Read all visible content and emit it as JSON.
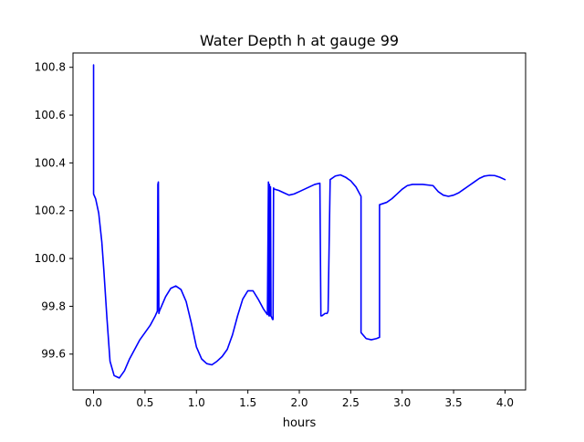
{
  "chart_data": {
    "type": "line",
    "title": "Water Depth h at gauge 99",
    "xlabel": "hours",
    "ylabel": "",
    "xlim": [
      -0.2,
      4.2
    ],
    "ylim": [
      99.45,
      100.86
    ],
    "xticks": [
      0.0,
      0.5,
      1.0,
      1.5,
      2.0,
      2.5,
      3.0,
      3.5,
      4.0
    ],
    "xtick_labels": [
      "0.0",
      "0.5",
      "1.0",
      "1.5",
      "2.0",
      "2.5",
      "3.0",
      "3.5",
      "4.0"
    ],
    "yticks": [
      99.6,
      99.8,
      100.0,
      100.2,
      100.4,
      100.6,
      100.8
    ],
    "ytick_labels": [
      "99.6",
      "99.8",
      "100.0",
      "100.2",
      "100.4",
      "100.6",
      "100.8"
    ],
    "grid": false,
    "legend": "none",
    "series": [
      {
        "color": "#0000ff",
        "x": [
          0.0,
          0.0,
          0.02,
          0.05,
          0.08,
          0.1,
          0.13,
          0.16,
          0.2,
          0.25,
          0.3,
          0.35,
          0.4,
          0.45,
          0.5,
          0.55,
          0.6,
          0.62,
          0.625,
          0.63,
          0.635,
          0.64,
          0.65,
          0.7,
          0.75,
          0.8,
          0.85,
          0.9,
          0.95,
          1.0,
          1.05,
          1.1,
          1.15,
          1.2,
          1.25,
          1.3,
          1.35,
          1.4,
          1.45,
          1.5,
          1.55,
          1.6,
          1.65,
          1.69,
          1.7,
          1.705,
          1.71,
          1.715,
          1.72,
          1.725,
          1.73,
          1.735,
          1.74,
          1.745,
          1.75,
          1.755,
          1.76,
          1.8,
          1.85,
          1.9,
          1.95,
          2.0,
          2.05,
          2.1,
          2.15,
          2.2,
          2.21,
          2.22,
          2.25,
          2.27,
          2.28,
          2.3,
          2.35,
          2.4,
          2.45,
          2.5,
          2.55,
          2.6,
          2.6,
          2.65,
          2.7,
          2.75,
          2.78,
          2.78,
          2.85,
          2.9,
          2.95,
          3.0,
          3.05,
          3.1,
          3.2,
          3.3,
          3.35,
          3.4,
          3.45,
          3.5,
          3.55,
          3.6,
          3.65,
          3.7,
          3.75,
          3.8,
          3.85,
          3.9,
          3.95,
          4.0
        ],
        "y": [
          100.81,
          100.27,
          100.25,
          100.19,
          100.07,
          99.95,
          99.75,
          99.57,
          99.51,
          99.5,
          99.53,
          99.58,
          99.62,
          99.66,
          99.69,
          99.72,
          99.76,
          99.78,
          100.31,
          100.32,
          99.77,
          99.78,
          99.79,
          99.84,
          99.875,
          99.885,
          99.87,
          99.82,
          99.73,
          99.63,
          99.58,
          99.56,
          99.555,
          99.57,
          99.59,
          99.62,
          99.68,
          99.76,
          99.83,
          99.865,
          99.865,
          99.83,
          99.79,
          99.765,
          100.32,
          99.76,
          100.31,
          99.76,
          100.3,
          99.76,
          99.755,
          99.75,
          99.745,
          99.745,
          100.295,
          100.29,
          100.29,
          100.285,
          100.275,
          100.265,
          100.27,
          100.28,
          100.29,
          100.3,
          100.31,
          100.315,
          99.76,
          99.76,
          99.77,
          99.77,
          99.78,
          100.33,
          100.345,
          100.35,
          100.34,
          100.325,
          100.3,
          100.26,
          99.69,
          99.665,
          99.66,
          99.665,
          99.67,
          100.225,
          100.235,
          100.25,
          100.27,
          100.29,
          100.305,
          100.31,
          100.31,
          100.305,
          100.28,
          100.265,
          100.26,
          100.265,
          100.275,
          100.29,
          100.305,
          100.32,
          100.335,
          100.345,
          100.348,
          100.347,
          100.34,
          100.33
        ]
      }
    ]
  }
}
